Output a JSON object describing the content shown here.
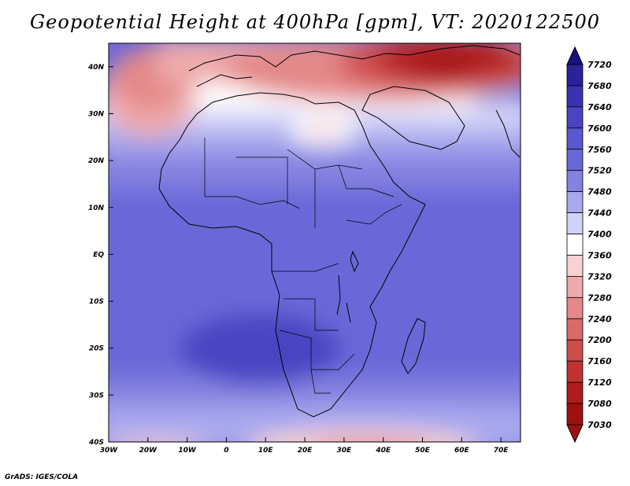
{
  "title": "Geopotential Height at 400hPa [gpm], VT: 2020122500",
  "footer": "GrADS: IGES/COLA",
  "axes": {
    "lat_labels": [
      "40N",
      "30N",
      "20N",
      "10N",
      "EQ",
      "10S",
      "20S",
      "30S",
      "40S"
    ],
    "lon_labels": [
      "30W",
      "20W",
      "10W",
      "0",
      "10E",
      "20E",
      "30E",
      "40E",
      "50E",
      "60E",
      "70E"
    ],
    "lon_range": [
      -30,
      75
    ],
    "lat_range": [
      -40,
      45
    ]
  },
  "colorbar": {
    "levels": [
      "7720",
      "7680",
      "7640",
      "7600",
      "7560",
      "7520",
      "7480",
      "7440",
      "7400",
      "7360",
      "7320",
      "7280",
      "7240",
      "7200",
      "7160",
      "7120",
      "7080",
      "7030"
    ],
    "colors": [
      "#1a1080",
      "#2a2298",
      "#3a32b0",
      "#4a44c2",
      "#5a56d0",
      "#6a68d8",
      "#8482e0",
      "#a8a8ee",
      "#d2d2f6",
      "#ffffff",
      "#f6d2d2",
      "#eeaaaa",
      "#e48888",
      "#da6a6a",
      "#cf4c4c",
      "#c23232",
      "#b01c1c",
      "#a01010"
    ]
  }
}
